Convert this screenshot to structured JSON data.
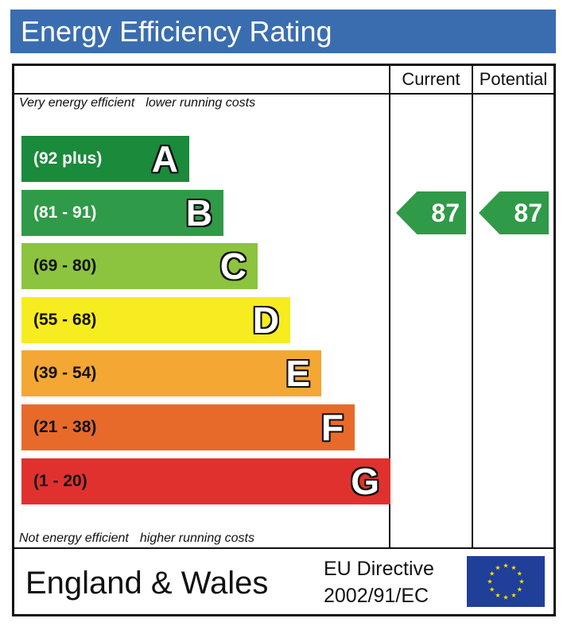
{
  "title": "Energy Efficiency Rating",
  "columns": {
    "current": "Current",
    "potential": "Potential"
  },
  "notes": {
    "top_left": "Very energy efficient",
    "top_right": "lower running costs",
    "bottom_left": "Not energy efficient",
    "bottom_right": "higher running costs"
  },
  "bands": [
    {
      "range": "(92 plus)",
      "letter": "A",
      "color": "#1a8a3b",
      "text_color": "#ffffff"
    },
    {
      "range": "(81 - 91)",
      "letter": "B",
      "color": "#2f9a47",
      "text_color": "#ffffff"
    },
    {
      "range": "(69 - 80)",
      "letter": "C",
      "color": "#8cc43f",
      "text_color": "#111111"
    },
    {
      "range": "(55 - 68)",
      "letter": "D",
      "color": "#f6ec1f",
      "text_color": "#111111"
    },
    {
      "range": "(39 - 54)",
      "letter": "E",
      "color": "#f5a733",
      "text_color": "#111111"
    },
    {
      "range": "(21 - 38)",
      "letter": "F",
      "color": "#e86a2b",
      "text_color": "#111111"
    },
    {
      "range": "(1 - 20)",
      "letter": "G",
      "color": "#e0312f",
      "text_color": "#111111"
    }
  ],
  "ratings": {
    "current": {
      "value": "87",
      "band": "B",
      "color": "#2f9a47"
    },
    "potential": {
      "value": "87",
      "band": "B",
      "color": "#2f9a47"
    }
  },
  "footer": {
    "region": "England & Wales",
    "directive_line1": "EU Directive",
    "directive_line2": "2002/91/EC",
    "flag_icon": "eu-flag-icon"
  }
}
